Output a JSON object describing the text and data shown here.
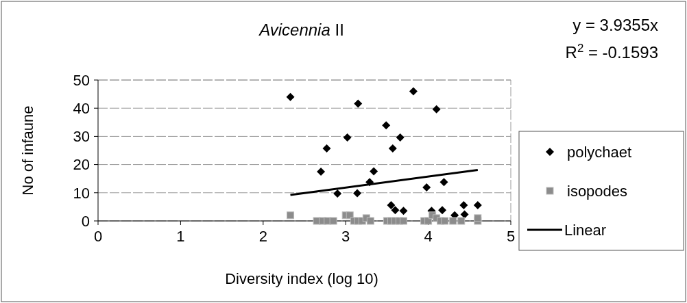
{
  "chart_data": {
    "type": "scatter",
    "title": "Avicennia II",
    "xlabel": "Diversity index (log 10)",
    "ylabel": "No of infaune",
    "annotations": [
      "y = 3.9355x",
      "R$^{2}$ = -0.1593"
    ],
    "xlim": [
      0,
      5
    ],
    "xticks": [
      0,
      1,
      2,
      3,
      4,
      5
    ],
    "ylim": [
      0,
      50
    ],
    "yticks": [
      0,
      10,
      20,
      30,
      40,
      50
    ],
    "grid": "y",
    "legend": "right",
    "series": [
      {
        "name": "polychaet",
        "color": "#000000",
        "marker": "diamond",
        "x": [
          2.33,
          2.7,
          2.77,
          2.9,
          3.02,
          3.15,
          3.14,
          3.29,
          3.34,
          3.49,
          3.57,
          3.66,
          3.82,
          4.1,
          3.98,
          4.19,
          3.55,
          3.6,
          3.7,
          4.04,
          4.17,
          4.32,
          4.44,
          4.43,
          4.6
        ],
        "values": [
          44,
          17.5,
          25.7,
          9.7,
          29.6,
          41.6,
          9.8,
          13.8,
          17.6,
          33.9,
          25.7,
          29.6,
          46,
          39.6,
          11.9,
          13.8,
          5.6,
          3.8,
          3.6,
          3.6,
          3.8,
          2,
          2.3,
          5.6,
          5.6
        ]
      },
      {
        "name": "isopodes",
        "color": "#8c8c8c",
        "marker": "square",
        "x": [
          2.33,
          2.65,
          2.72,
          2.78,
          2.85,
          3.0,
          3.05,
          3.1,
          3.15,
          3.2,
          3.25,
          3.3,
          3.5,
          3.55,
          3.6,
          3.65,
          3.7,
          3.95,
          4.0,
          4.05,
          4.1,
          4.15,
          4.2,
          4.3,
          4.4,
          4.6,
          4.6
        ],
        "values": [
          2,
          0,
          0,
          0,
          0,
          2,
          2,
          0,
          0,
          0,
          1,
          0,
          0,
          0,
          0,
          0,
          0,
          0,
          0,
          2,
          1,
          0,
          0,
          0,
          0,
          0,
          1
        ]
      },
      {
        "name": "Linear",
        "type": "line",
        "color": "#000000",
        "marker": "none",
        "line_style": "solid",
        "x": [
          2.33,
          4.6
        ],
        "values": [
          9.2,
          18.1
        ]
      }
    ]
  }
}
